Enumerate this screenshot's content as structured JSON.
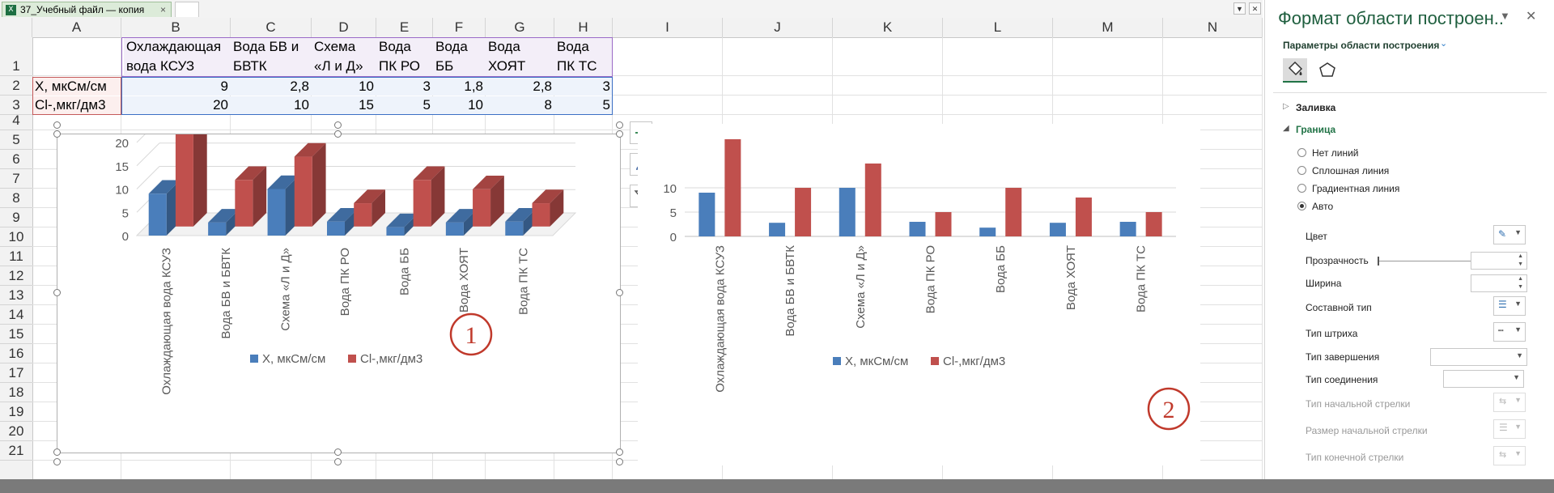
{
  "file_tab": {
    "label": "37_Учебный файл — копия",
    "close": "×"
  },
  "columns": [
    "A",
    "B",
    "C",
    "D",
    "E",
    "F",
    "G",
    "H",
    "I",
    "J",
    "K",
    "L",
    "M",
    "N"
  ],
  "rows": [
    "1",
    "2",
    "3",
    "4",
    "5",
    "6",
    "7",
    "8",
    "9",
    "10",
    "11",
    "12",
    "13",
    "14",
    "15",
    "16",
    "17",
    "18",
    "19",
    "20",
    "21"
  ],
  "table": {
    "headers": [
      "Охлаждающая вода КСУЗ",
      "Вода БВ и БВТК",
      "Схема «Л и Д»",
      "Вода ПК РО",
      "Вода ББ",
      "Вода ХОЯТ",
      "Вода ПК ТС"
    ],
    "rows": [
      {
        "label": "X, мкСм/см",
        "values": [
          "9",
          "2,8",
          "10",
          "3",
          "1,8",
          "2,8",
          "3"
        ]
      },
      {
        "label": "Cl-,мкг/дм3",
        "values": [
          "20",
          "10",
          "15",
          "5",
          "10",
          "8",
          "5"
        ]
      }
    ]
  },
  "chart_data": [
    {
      "type": "bar",
      "style": "3d-clustered-column",
      "categories": [
        "Охлаждающая вода КСУЗ",
        "Вода БВ и БВТК",
        "Схема «Л и Д»",
        "Вода ПК РО",
        "Вода ББ",
        "Вода ХОЯТ",
        "Вода ПК ТС"
      ],
      "series": [
        {
          "name": "X, мкСм/см",
          "values": [
            9,
            2.8,
            10,
            3,
            1.8,
            2.8,
            3
          ],
          "color": "#4a7ebb"
        },
        {
          "name": "Cl-,мкг/дм3",
          "values": [
            20,
            10,
            15,
            5,
            10,
            8,
            5
          ],
          "color": "#c0504d"
        }
      ],
      "yticks": [
        "0",
        "5",
        "10",
        "15",
        "20"
      ],
      "ylim": [
        0,
        20
      ],
      "legend": "bottom",
      "badge": "1"
    },
    {
      "type": "bar",
      "style": "clustered-column",
      "categories": [
        "Охлаждающая вода КСУЗ",
        "Вода БВ и БВТК",
        "Схема «Л и Д»",
        "Вода ПК РО",
        "Вода ББ",
        "Вода ХОЯТ",
        "Вода ПК ТС"
      ],
      "series": [
        {
          "name": "X, мкСм/см",
          "values": [
            9,
            2.8,
            10,
            3,
            1.8,
            2.8,
            3
          ],
          "color": "#4a7ebb"
        },
        {
          "name": "Cl-,мкг/дм3",
          "values": [
            20,
            10,
            15,
            5,
            10,
            8,
            5
          ],
          "color": "#c0504d"
        }
      ],
      "yticks": [
        "0",
        "5",
        "10"
      ],
      "ylim": [
        0,
        20
      ],
      "legend": "bottom",
      "badge": "2"
    }
  ],
  "pane": {
    "title": "Формат области построен..",
    "subtitle": "Параметры области построения",
    "sections": {
      "fill": "Заливка",
      "border": "Граница"
    },
    "border_options": [
      "Нет линий",
      "Сплошная линия",
      "Градиентная линия",
      "Авто"
    ],
    "selected_option": "Авто",
    "properties": [
      "Цвет",
      "Прозрачность",
      "Ширина",
      "Составной тип",
      "Тип штриха",
      "Тип завершения",
      "Тип соединения",
      "Тип начальной стрелки",
      "Размер начальной стрелки",
      "Тип конечной стрелки"
    ],
    "accent": "#217346"
  }
}
